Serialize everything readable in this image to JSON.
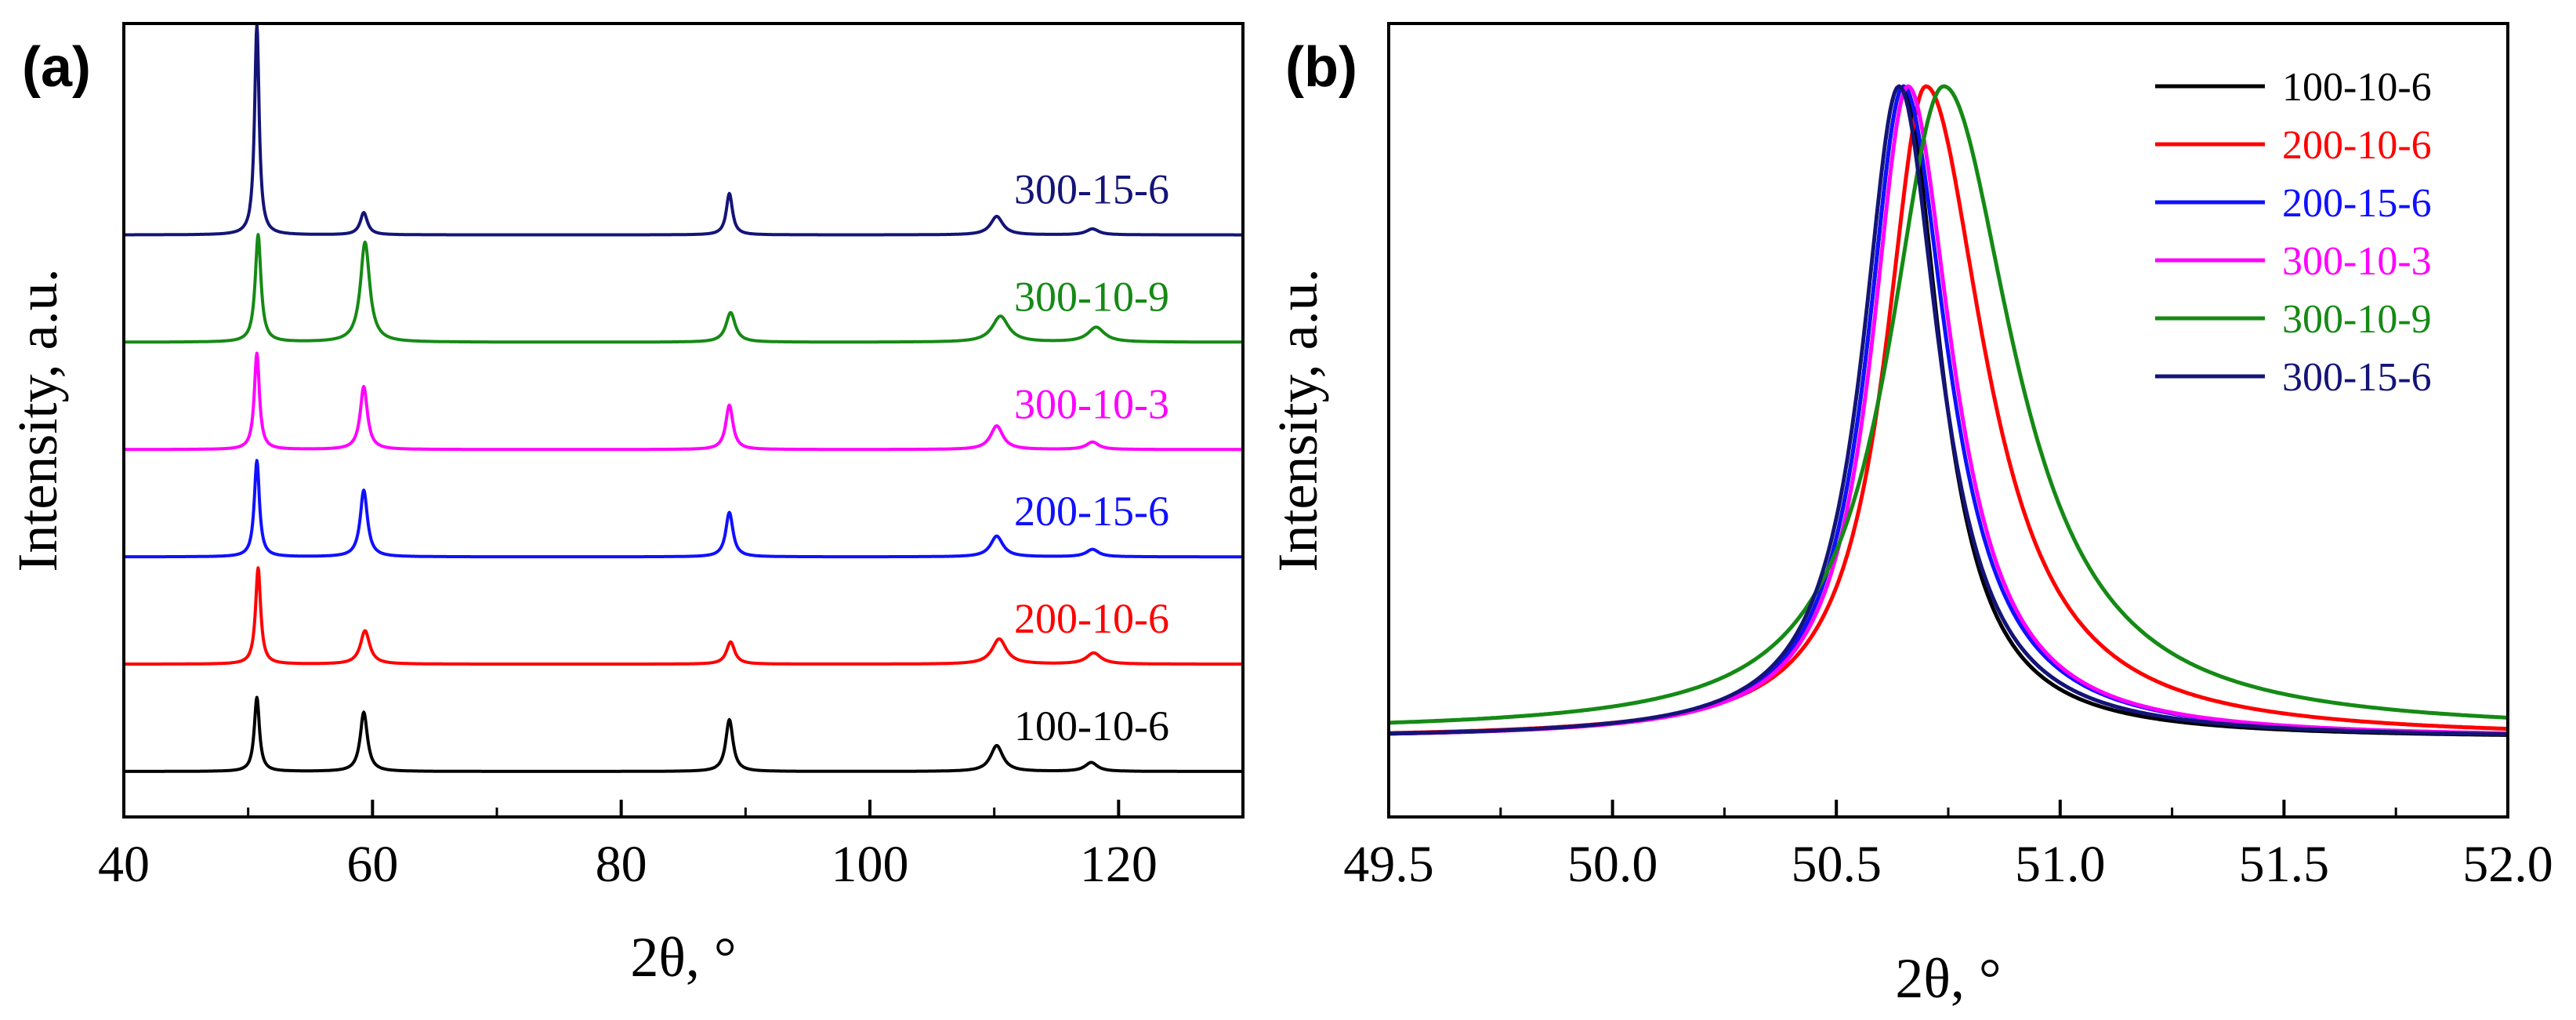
{
  "colors": {
    "100-10-6": "#000000",
    "200-10-6": "#ff0000",
    "200-15-6": "#1010ff",
    "300-10-3": "#ff00ff",
    "300-10-9": "#158a15",
    "300-15-6": "#141477"
  },
  "chart_data": [
    {
      "panel": "(a)",
      "type": "line",
      "title": "",
      "xlabel": "2θ, °",
      "ylabel": "Intensity, a.u.",
      "xlim": [
        40,
        130
      ],
      "xticks": [
        40,
        60,
        80,
        100,
        120
      ],
      "xtick_labels": [
        "40",
        "60",
        "80",
        "100",
        "120"
      ],
      "ylim": [
        0,
        100
      ],
      "yticks_visible": false,
      "stacked_offsets": true,
      "series": [
        {
          "name": "100-10-6",
          "offset": 0,
          "peaks": [
            {
              "x": 50.7,
              "height": 10,
              "width": 0.25
            },
            {
              "x": 59.3,
              "height": 8,
              "width": 0.35
            },
            {
              "x": 88.7,
              "height": 7,
              "width": 0.35
            },
            {
              "x": 110.2,
              "height": 3.5,
              "width": 0.6
            },
            {
              "x": 117.8,
              "height": 1.2,
              "width": 0.6
            }
          ]
        },
        {
          "name": "200-10-6",
          "offset": 14.5,
          "peaks": [
            {
              "x": 50.8,
              "height": 13,
              "width": 0.25
            },
            {
              "x": 59.4,
              "height": 4.5,
              "width": 0.45
            },
            {
              "x": 88.8,
              "height": 3,
              "width": 0.4
            },
            {
              "x": 110.4,
              "height": 3.4,
              "width": 0.7
            },
            {
              "x": 118.0,
              "height": 1.5,
              "width": 0.7
            }
          ]
        },
        {
          "name": "200-15-6",
          "offset": 29,
          "peaks": [
            {
              "x": 50.7,
              "height": 13,
              "width": 0.25
            },
            {
              "x": 59.3,
              "height": 9,
              "width": 0.35
            },
            {
              "x": 88.7,
              "height": 6,
              "width": 0.35
            },
            {
              "x": 110.2,
              "height": 2.8,
              "width": 0.6
            },
            {
              "x": 117.9,
              "height": 1.0,
              "width": 0.6
            }
          ]
        },
        {
          "name": "300-10-3",
          "offset": 43.5,
          "peaks": [
            {
              "x": 50.7,
              "height": 13,
              "width": 0.25
            },
            {
              "x": 59.3,
              "height": 8.5,
              "width": 0.35
            },
            {
              "x": 88.7,
              "height": 6,
              "width": 0.35
            },
            {
              "x": 110.2,
              "height": 3.2,
              "width": 0.6
            },
            {
              "x": 117.9,
              "height": 1.0,
              "width": 0.6
            }
          ]
        },
        {
          "name": "300-10-9",
          "offset": 58,
          "peaks": [
            {
              "x": 50.8,
              "height": 14.5,
              "width": 0.28
            },
            {
              "x": 59.4,
              "height": 13.5,
              "width": 0.45
            },
            {
              "x": 88.8,
              "height": 4,
              "width": 0.45
            },
            {
              "x": 110.5,
              "height": 3.5,
              "width": 0.8
            },
            {
              "x": 118.2,
              "height": 2.0,
              "width": 0.8
            }
          ]
        },
        {
          "name": "300-15-6",
          "offset": 72.5,
          "peaks": [
            {
              "x": 50.7,
              "height": 28.5,
              "width": 0.22
            },
            {
              "x": 59.3,
              "height": 3,
              "width": 0.35
            },
            {
              "x": 88.7,
              "height": 5.6,
              "width": 0.3
            },
            {
              "x": 110.2,
              "height": 2.5,
              "width": 0.6
            },
            {
              "x": 117.9,
              "height": 0.8,
              "width": 0.6
            }
          ]
        }
      ]
    },
    {
      "panel": "(b)",
      "type": "line",
      "title": "",
      "xlabel": "2θ, °",
      "ylabel": "Intensity, a.u.",
      "xlim": [
        49.5,
        52.0
      ],
      "xticks": [
        49.5,
        50.0,
        50.5,
        51.0,
        51.5,
        52.0
      ],
      "xtick_labels": [
        "49.5",
        "50.0",
        "50.5",
        "51.0",
        "51.5",
        "52.0"
      ],
      "ylim": [
        0,
        1.05
      ],
      "yticks_visible": false,
      "legend_position": "top-right",
      "series": [
        {
          "name": "100-10-6",
          "center": 50.65,
          "baseline": 0.0,
          "left_width": 0.1,
          "right_width": 0.1
        },
        {
          "name": "200-10-6",
          "center": 50.7,
          "baseline": 0.0,
          "left_width": 0.11,
          "right_width": 0.16
        },
        {
          "name": "200-15-6",
          "center": 50.65,
          "baseline": 0.0,
          "left_width": 0.1,
          "right_width": 0.12
        },
        {
          "name": "300-10-3",
          "center": 50.66,
          "baseline": 0.0,
          "left_width": 0.1,
          "right_width": 0.12
        },
        {
          "name": "300-10-9",
          "center": 50.74,
          "baseline": 0.01,
          "left_width": 0.15,
          "right_width": 0.19
        },
        {
          "name": "300-15-6",
          "center": 50.64,
          "baseline": 0.0,
          "left_width": 0.1,
          "right_width": 0.11
        }
      ]
    }
  ]
}
